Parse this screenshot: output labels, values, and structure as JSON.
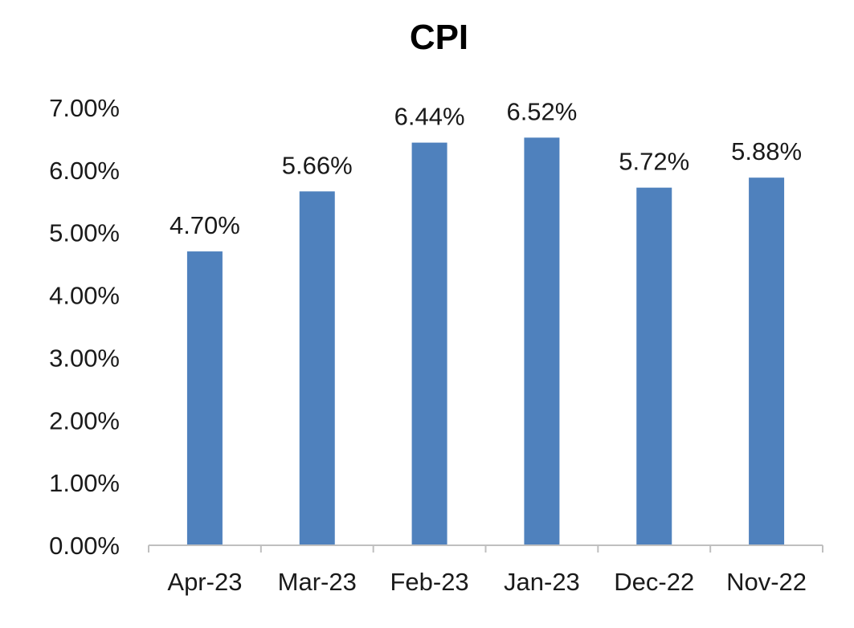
{
  "chart_data": {
    "type": "bar",
    "title": "CPI",
    "categories": [
      "Apr-23",
      "Mar-23",
      "Feb-23",
      "Jan-23",
      "Dec-22",
      "Nov-22"
    ],
    "values": [
      4.7,
      5.66,
      6.44,
      6.52,
      5.72,
      5.88
    ],
    "data_labels": [
      "4.70%",
      "5.66%",
      "6.44%",
      "6.52%",
      "5.72%",
      "5.88%"
    ],
    "y_ticks": [
      "0.00%",
      "1.00%",
      "2.00%",
      "3.00%",
      "4.00%",
      "5.00%",
      "6.00%",
      "7.00%"
    ],
    "ylim": [
      0,
      7
    ],
    "unit": "%",
    "xlabel": "",
    "ylabel": "",
    "grid": false,
    "legend": "none",
    "bar_color": "#4F81BD"
  }
}
